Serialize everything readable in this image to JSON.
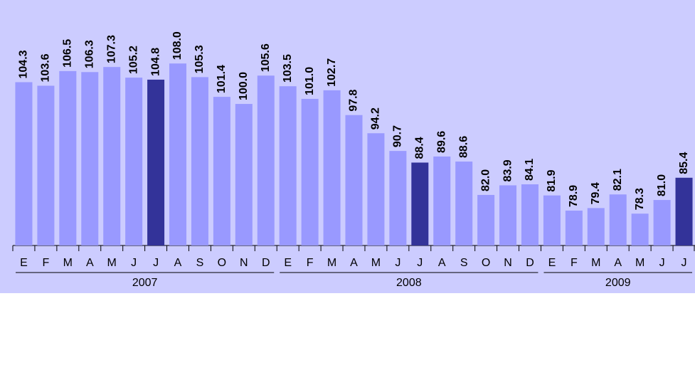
{
  "chart_data": {
    "type": "bar",
    "categories": [
      "E",
      "F",
      "M",
      "A",
      "M",
      "J",
      "J",
      "A",
      "S",
      "O",
      "N",
      "D",
      "E",
      "F",
      "M",
      "A",
      "M",
      "J",
      "J",
      "A",
      "S",
      "O",
      "N",
      "D",
      "E",
      "F",
      "M",
      "A",
      "M",
      "J",
      "J"
    ],
    "groups": [
      {
        "label": "2007",
        "size": 12
      },
      {
        "label": "2008",
        "size": 12
      },
      {
        "label": "2009",
        "size": 7
      }
    ],
    "values": [
      104.3,
      103.6,
      106.5,
      106.3,
      107.3,
      105.2,
      104.8,
      108.0,
      105.3,
      101.4,
      100.0,
      105.6,
      103.5,
      101.0,
      102.7,
      97.8,
      94.2,
      90.7,
      88.4,
      89.6,
      88.6,
      82.0,
      83.9,
      84.1,
      81.9,
      78.9,
      79.4,
      82.1,
      78.3,
      81.0,
      85.4
    ],
    "value_labels": [
      "104.3",
      "103.6",
      "106.5",
      "106.3",
      "107.3",
      "105.2",
      "104.8",
      "108.0",
      "105.3",
      "101.4",
      "100.0",
      "105.6",
      "103.5",
      "101.0",
      "102.7",
      "97.8",
      "94.2",
      "90.7",
      "88.4",
      "89.6",
      "88.6",
      "82.0",
      "83.9",
      "84.1",
      "81.9",
      "78.9",
      "79.4",
      "82.1",
      "78.3",
      "81.0",
      "85.4"
    ],
    "colors": [
      "#9999ff",
      "#9999ff",
      "#9999ff",
      "#9999ff",
      "#9999ff",
      "#9999ff",
      "#333399",
      "#9999ff",
      "#9999ff",
      "#9999ff",
      "#9999ff",
      "#9999ff",
      "#9999ff",
      "#9999ff",
      "#9999ff",
      "#9999ff",
      "#9999ff",
      "#9999ff",
      "#333399",
      "#9999ff",
      "#9999ff",
      "#9999ff",
      "#9999ff",
      "#9999ff",
      "#9999ff",
      "#9999ff",
      "#9999ff",
      "#9999ff",
      "#9999ff",
      "#9999ff",
      "#333399"
    ],
    "ylim": [
      72,
      110
    ]
  }
}
